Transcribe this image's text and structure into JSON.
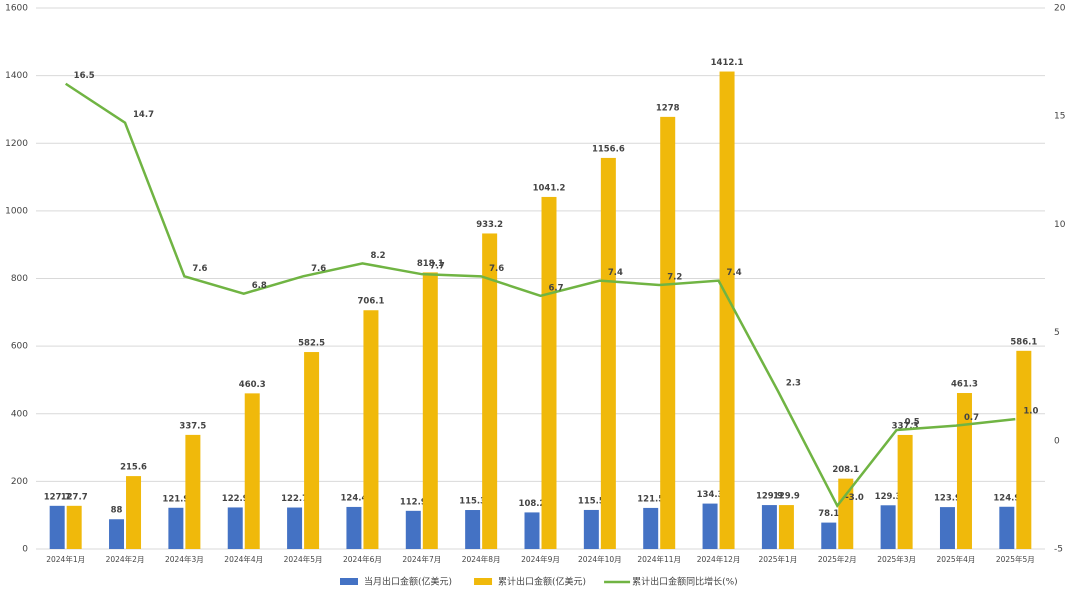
{
  "chart_data": {
    "type": "bar",
    "categories": [
      "2024年1月",
      "2024年2月",
      "2024年3月",
      "2024年4月",
      "2024年5月",
      "2024年6月",
      "2024年7月",
      "2024年8月",
      "2024年9月",
      "2024年10月",
      "2024年11月",
      "2024年12月",
      "2025年1月",
      "2025年2月",
      "2025年3月",
      "2025年4月",
      "2025年5月"
    ],
    "series": [
      {
        "name": "当月出口金额(亿美元)",
        "type": "bar",
        "color": "#4472c4",
        "label_color": "#3b5998",
        "values": [
          127.7,
          88,
          121.9,
          122.9,
          122.7,
          124.4,
          112.9,
          115.3,
          108.2,
          115.5,
          121.5,
          134.3,
          129.9,
          78.1,
          129.3,
          123.9,
          124.9
        ]
      },
      {
        "name": "累计出口金额(亿美元)",
        "type": "bar",
        "color": "#f0b90b",
        "label_color": "#6b5a1e",
        "values": [
          127.7,
          215.6,
          337.5,
          460.3,
          582.5,
          706.1,
          818.1,
          933.2,
          1041.2,
          1156.6,
          1278,
          1412.1,
          129.9,
          208.1,
          337.3,
          461.3,
          586.1
        ]
      },
      {
        "name": "累计出口金额同比增长(%)",
        "type": "line",
        "axis": "y2",
        "color": "#70b443",
        "label_color": "#222222",
        "values": [
          16.5,
          14.7,
          7.6,
          6.8,
          7.6,
          8.2,
          7.7,
          7.6,
          6.7,
          7.4,
          7.2,
          7.4,
          2.3,
          -3.0,
          0.5,
          0.7,
          1.0
        ],
        "value_labels": [
          "16.5",
          "14.7",
          "7.6",
          "6.8",
          "7.6",
          "8.2",
          "7.7",
          "7.6",
          "6.7",
          "7.4",
          "7.2",
          "7.4",
          "2.3",
          "-3.0",
          "0.5",
          "0.7",
          "1.0"
        ]
      }
    ],
    "ylim": [
      0,
      1600
    ],
    "yticks": [
      0,
      200,
      400,
      600,
      800,
      1000,
      1200,
      1400,
      1600
    ],
    "y2lim": [
      -5,
      20
    ],
    "y2ticks": [
      -5,
      0,
      5,
      10,
      15,
      20
    ],
    "grid": true
  }
}
